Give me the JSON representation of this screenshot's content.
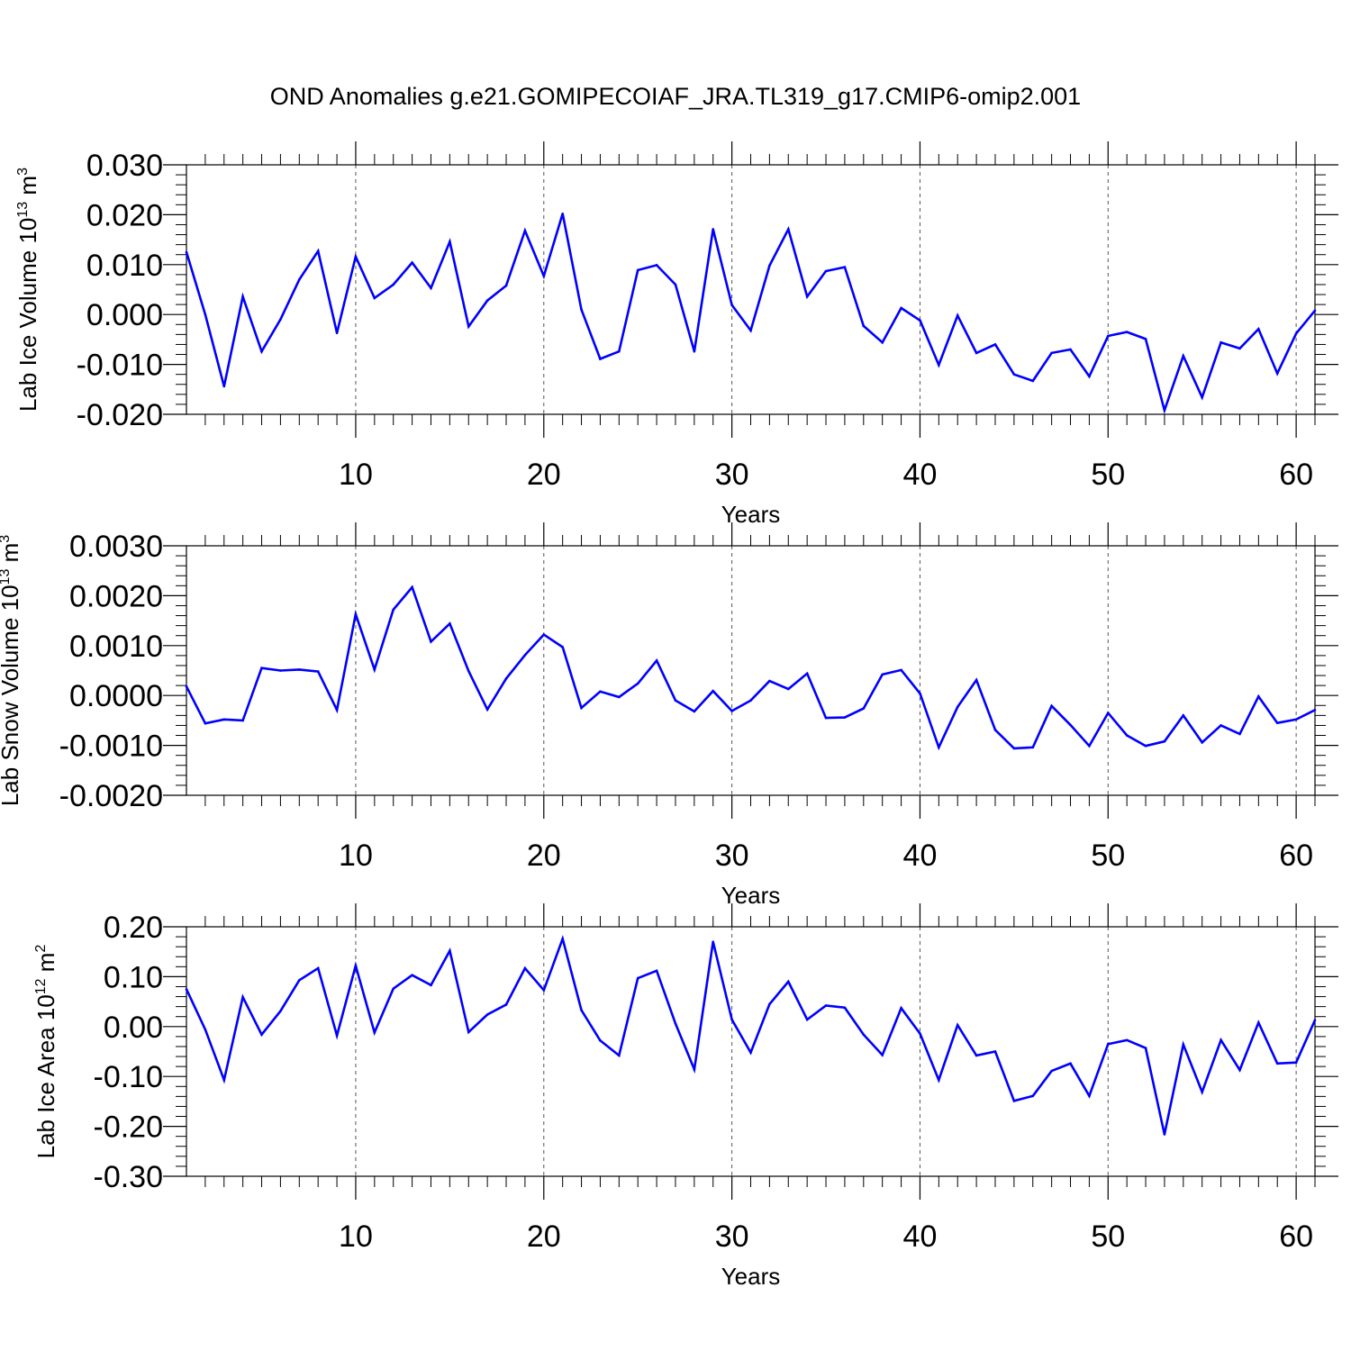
{
  "title": "OND Anomalies g.e21.GOMIPECOIAF_JRA.TL319_g17.CMIP6-omip2.001",
  "colors": {
    "line": "#0000ff",
    "axis": "#000000",
    "grid": "#555555"
  },
  "chart_data": [
    {
      "type": "line",
      "name": "ice-volume",
      "ylabel": {
        "main": "Lab Ice Volume 10",
        "exp": "13",
        "unit": " m",
        "unit_exp": "3"
      },
      "xlabel": "Years",
      "xlim": [
        1,
        61
      ],
      "ylim": [
        -0.02,
        0.03
      ],
      "yticks": [
        -0.02,
        -0.01,
        0.0,
        0.01,
        0.02,
        0.03
      ],
      "ytick_labels": [
        "-0.020",
        "-0.010",
        "0.000",
        "0.010",
        "0.020",
        "0.030"
      ],
      "xticks": [
        10,
        20,
        30,
        40,
        50,
        60
      ],
      "xtick_labels": [
        "10",
        "20",
        "30",
        "40",
        "50",
        "60"
      ],
      "grid": "x-dashed",
      "x": [
        1,
        2,
        3,
        4,
        5,
        6,
        7,
        8,
        9,
        10,
        11,
        12,
        13,
        14,
        15,
        16,
        17,
        18,
        19,
        20,
        21,
        22,
        23,
        24,
        25,
        26,
        27,
        28,
        29,
        30,
        31,
        32,
        33,
        34,
        35,
        36,
        37,
        38,
        39,
        40,
        41,
        42,
        43,
        44,
        45,
        46,
        47,
        48,
        49,
        50,
        51,
        52,
        53,
        54,
        55,
        56,
        57,
        58,
        59,
        60,
        61
      ],
      "values": [
        0.0125,
        0.0,
        -0.0144,
        0.0036,
        -0.0074,
        -0.001,
        0.007,
        0.0127,
        -0.0037,
        0.0116,
        0.0033,
        0.006,
        0.0104,
        0.0053,
        0.0146,
        -0.0024,
        0.0028,
        0.0058,
        0.0168,
        0.0077,
        0.0202,
        0.001,
        -0.0089,
        -0.0074,
        0.0089,
        0.0099,
        0.006,
        -0.0074,
        0.0171,
        0.0019,
        -0.0032,
        0.0098,
        0.0171,
        0.0036,
        0.0087,
        0.0095,
        -0.0023,
        -0.0056,
        0.0013,
        -0.0012,
        -0.0101,
        -0.0002,
        -0.0077,
        -0.006,
        -0.012,
        -0.0133,
        -0.0077,
        -0.007,
        -0.0124,
        -0.0043,
        -0.0035,
        -0.0049,
        -0.0192,
        -0.0083,
        -0.0166,
        -0.0056,
        -0.0068,
        -0.0029,
        -0.0118,
        -0.0038,
        0.0008
      ]
    },
    {
      "type": "line",
      "name": "snow-volume",
      "ylabel": {
        "main": "Lab Snow Volume 10",
        "exp": "13",
        "unit": " m",
        "unit_exp": "3"
      },
      "xlabel": "Years",
      "xlim": [
        1,
        61
      ],
      "ylim": [
        -0.002,
        0.003
      ],
      "yticks": [
        -0.002,
        -0.001,
        0.0,
        0.001,
        0.002,
        0.003
      ],
      "ytick_labels": [
        "-0.0020",
        "-0.0010",
        "0.0000",
        "0.0010",
        "0.0020",
        "0.0030"
      ],
      "xticks": [
        10,
        20,
        30,
        40,
        50,
        60
      ],
      "xtick_labels": [
        "10",
        "20",
        "30",
        "40",
        "50",
        "60"
      ],
      "grid": "x-dashed",
      "x": [
        1,
        2,
        3,
        4,
        5,
        6,
        7,
        8,
        9,
        10,
        11,
        12,
        13,
        14,
        15,
        16,
        17,
        18,
        19,
        20,
        21,
        22,
        23,
        24,
        25,
        26,
        27,
        28,
        29,
        30,
        31,
        32,
        33,
        34,
        35,
        36,
        37,
        38,
        39,
        40,
        41,
        42,
        43,
        44,
        45,
        46,
        47,
        48,
        49,
        50,
        51,
        52,
        53,
        54,
        55,
        56,
        57,
        58,
        59,
        60,
        61
      ],
      "values": [
        0.00018,
        -0.00056,
        -0.00048,
        -0.0005,
        0.00055,
        0.0005,
        0.00052,
        0.00048,
        -0.00029,
        0.00163,
        0.00052,
        0.00172,
        0.00217,
        0.00108,
        0.00144,
        0.00049,
        -0.00028,
        0.00034,
        0.00081,
        0.00122,
        0.00097,
        -0.00025,
        8e-05,
        -3e-05,
        0.00024,
        0.0007,
        -0.0001,
        -0.00032,
        9e-05,
        -0.00031,
        -0.0001,
        0.00029,
        0.00013,
        0.00044,
        -0.00045,
        -0.00044,
        -0.00026,
        0.00042,
        0.00051,
        4e-05,
        -0.00104,
        -0.00023,
        0.00031,
        -0.00069,
        -0.00106,
        -0.00104,
        -0.00021,
        -0.00059,
        -0.00101,
        -0.00035,
        -0.0008,
        -0.00101,
        -0.00092,
        -0.0004,
        -0.00094,
        -0.0006,
        -0.00077,
        -2e-05,
        -0.00055,
        -0.00048,
        -0.00029
      ]
    },
    {
      "type": "line",
      "name": "ice-area",
      "ylabel": {
        "main": "Lab Ice Area 10",
        "exp": "12",
        "unit": " m",
        "unit_exp": "2"
      },
      "xlabel": "Years",
      "xlim": [
        1,
        61
      ],
      "ylim": [
        -0.3,
        0.2
      ],
      "yticks": [
        -0.3,
        -0.2,
        -0.1,
        0.0,
        0.1,
        0.2
      ],
      "ytick_labels": [
        "-0.30",
        "-0.20",
        "-0.10",
        "0.00",
        "0.10",
        "0.20"
      ],
      "xticks": [
        10,
        20,
        30,
        40,
        50,
        60
      ],
      "xtick_labels": [
        "10",
        "20",
        "30",
        "40",
        "50",
        "60"
      ],
      "grid": "x-dashed",
      "x": [
        1,
        2,
        3,
        4,
        5,
        6,
        7,
        8,
        9,
        10,
        11,
        12,
        13,
        14,
        15,
        16,
        17,
        18,
        19,
        20,
        21,
        22,
        23,
        24,
        25,
        26,
        27,
        28,
        29,
        30,
        31,
        32,
        33,
        34,
        35,
        36,
        37,
        38,
        39,
        40,
        41,
        42,
        43,
        44,
        45,
        46,
        47,
        48,
        49,
        50,
        51,
        52,
        53,
        54,
        55,
        56,
        57,
        58,
        59,
        60,
        61
      ],
      "values": [
        0.075,
        -0.006,
        -0.107,
        0.059,
        -0.016,
        0.031,
        0.093,
        0.117,
        -0.018,
        0.122,
        -0.012,
        0.076,
        0.103,
        0.083,
        0.152,
        -0.011,
        0.024,
        0.044,
        0.117,
        0.073,
        0.176,
        0.033,
        -0.028,
        -0.058,
        0.097,
        0.112,
        0.006,
        -0.086,
        0.17,
        0.014,
        -0.052,
        0.045,
        0.09,
        0.014,
        0.042,
        0.038,
        -0.016,
        -0.057,
        0.037,
        -0.014,
        -0.107,
        0.003,
        -0.058,
        -0.05,
        -0.149,
        -0.139,
        -0.089,
        -0.074,
        -0.139,
        -0.035,
        -0.027,
        -0.043,
        -0.216,
        -0.036,
        -0.131,
        -0.027,
        -0.087,
        0.008,
        -0.074,
        -0.072,
        0.013
      ]
    }
  ]
}
